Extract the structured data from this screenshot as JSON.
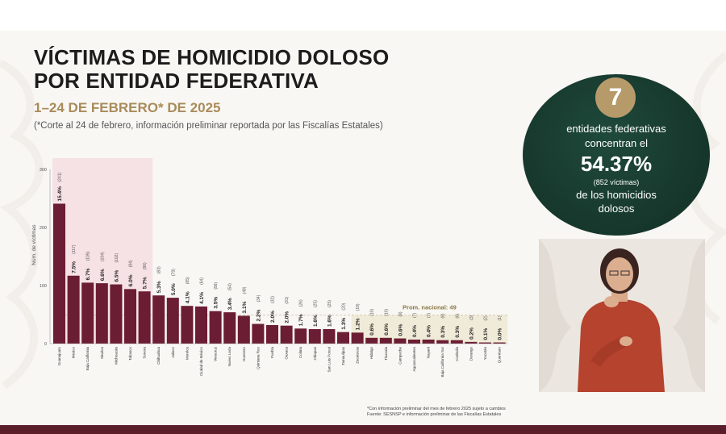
{
  "title_line1": "VÍCTIMAS DE HOMICIDIO DOLOSO",
  "title_line2": "POR ENTIDAD FEDERATIVA",
  "subtitle": "1–24 DE FEBRERO* DE 2025",
  "note": "(*Corte al 24 de febrero, información preliminar reportada por las Fiscalías Estatales)",
  "summary": {
    "count": "7",
    "line1": "entidades federativas",
    "line2": "concentran el",
    "percent": "54.37%",
    "victims": "(852 víctimas)",
    "line3": "de los homicidios",
    "line4": "dolosos"
  },
  "footnote_line1": "*Con información preliminar del mes de febrero 2025 sujeto a cambios",
  "footnote_line2": "Fuente: SESNSP e información preliminar de las Fiscalías Estatales",
  "colors": {
    "bar": "#6b1d33",
    "highlight": "#f4d2d8",
    "average_band": "#efe9d2",
    "circle": "#16362b",
    "accent": "#b79a6a"
  },
  "chart_data": {
    "type": "bar",
    "ylabel": "Núm. de víctimas",
    "ylim": [
      0,
      300
    ],
    "yticks": [
      0,
      100,
      200,
      300
    ],
    "average_label": "Prom. nacional: 49",
    "average_value": 49,
    "highlighted_count": 7,
    "categories": [
      "Guanajuato",
      "México",
      "Baja California",
      "Sinaloa",
      "Michoacán",
      "Tabasco",
      "Sonora",
      "Chihuahua",
      "Jalisco",
      "Morelos",
      "Ciudad de México",
      "Veracruz",
      "Nuevo León",
      "Guerrero",
      "Quintana Roo",
      "Puebla",
      "Oaxaca",
      "Colima",
      "Chiapas",
      "San Luis Potosí",
      "Tamaulipas",
      "Zacatecas",
      "Hidalgo",
      "Tlaxcala",
      "Campeche",
      "Aguascalientes",
      "Nayarit",
      "Baja California Sur",
      "Coahuila",
      "Durango",
      "Yucatán",
      "Querétaro"
    ],
    "values": [
      241,
      117,
      105,
      104,
      102,
      94,
      90,
      83,
      79,
      65,
      64,
      56,
      54,
      48,
      34,
      32,
      31,
      26,
      25,
      25,
      20,
      19,
      10,
      10,
      9,
      7,
      7,
      6,
      6,
      3,
      2,
      1
    ],
    "labels": [
      "15.4%",
      "7.5%",
      "6.7%",
      "6.6%",
      "6.5%",
      "6.0%",
      "5.7%",
      "5.3%",
      "5.0%",
      "4.1%",
      "4.1%",
      "3.5%",
      "3.4%",
      "3.1%",
      "2.2%",
      "2.0%",
      "2.0%",
      "1.7%",
      "1.6%",
      "1.6%",
      "1.3%",
      "1.2%",
      "0.6%",
      "0.6%",
      "0.6%",
      "0.4%",
      "0.4%",
      "0.3%",
      "0.3%",
      "0.2%",
      "0.1%",
      "0.0%"
    ],
    "value_labels": [
      "(241)",
      "(117)",
      "(105)",
      "(104)",
      "(102)",
      "(94)",
      "(90)",
      "(83)",
      "(79)",
      "(65)",
      "(64)",
      "(56)",
      "(54)",
      "(48)",
      "(34)",
      "(32)",
      "(31)",
      "(26)",
      "(25)",
      "(25)",
      "(20)",
      "(19)",
      "(10)",
      "(10)",
      "(9)",
      "(7)",
      "(7)",
      "(6)",
      "(6)",
      "(3)",
      "(2)",
      "(1)"
    ]
  }
}
